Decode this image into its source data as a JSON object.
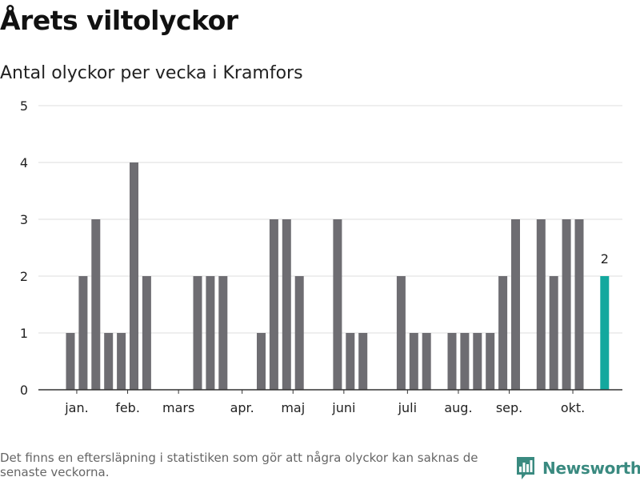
{
  "header": {
    "title": "Årets viltolyckor",
    "subtitle": "Antal olyckor per vecka i Kramfors"
  },
  "footer": {
    "note": "Det finns en eftersläpning i statistiken som gör att några olyckor kan saknas de senaste veckorna.",
    "brand": "Newsworthy"
  },
  "colors": {
    "bar": "#6e6d72",
    "highlight": "#13a89e",
    "grid": "#dddddd",
    "axis": "#333333",
    "brand": "#3a8a80"
  },
  "chart_data": {
    "type": "bar",
    "title": "Antal olyckor per vecka i Kramfors",
    "xlabel": "",
    "ylabel": "",
    "ylim": [
      0,
      5
    ],
    "yticks": [
      0,
      1,
      2,
      3,
      4,
      5
    ],
    "grid": true,
    "weeks": [
      1,
      2,
      3,
      4,
      5,
      6,
      7,
      8,
      9,
      10,
      11,
      12,
      13,
      14,
      15,
      16,
      17,
      18,
      19,
      20,
      21,
      22,
      23,
      24,
      25,
      26,
      27,
      28,
      29,
      30,
      31,
      32,
      33,
      34,
      35,
      36,
      37,
      38,
      39,
      40,
      41,
      42,
      43
    ],
    "values": [
      1,
      2,
      3,
      1,
      1,
      4,
      2,
      0,
      0,
      0,
      2,
      2,
      2,
      0,
      0,
      1,
      3,
      3,
      2,
      0,
      0,
      3,
      1,
      1,
      0,
      0,
      2,
      1,
      1,
      0,
      1,
      1,
      1,
      1,
      2,
      3,
      0,
      3,
      2,
      3,
      3,
      0,
      2
    ],
    "highlight_index": 42,
    "highlight_label": "2",
    "month_labels": [
      {
        "label": "jan.",
        "week": 1.5
      },
      {
        "label": "feb.",
        "week": 5.5
      },
      {
        "label": "mars",
        "week": 9.5
      },
      {
        "label": "apr.",
        "week": 14.5
      },
      {
        "label": "maj",
        "week": 18.5
      },
      {
        "label": "juni",
        "week": 22.5
      },
      {
        "label": "juli",
        "week": 27.5
      },
      {
        "label": "aug.",
        "week": 31.5
      },
      {
        "label": "sep.",
        "week": 35.5
      },
      {
        "label": "okt.",
        "week": 40.5
      }
    ]
  }
}
